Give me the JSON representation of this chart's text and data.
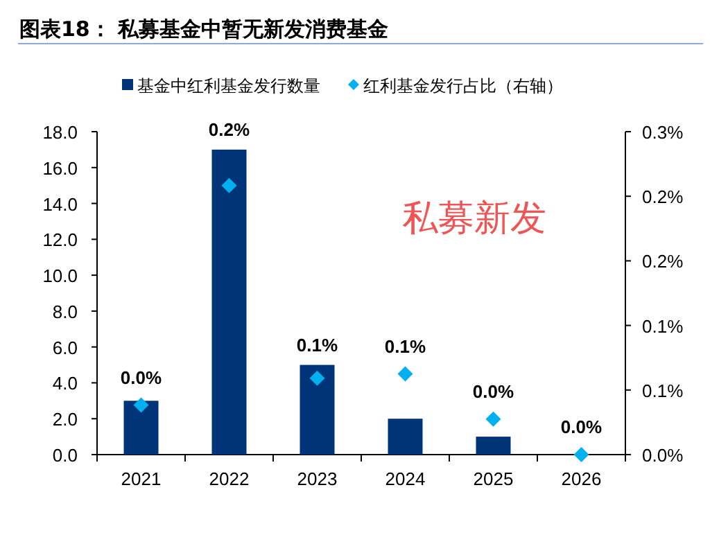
{
  "chart_data": {
    "type": "bar",
    "title": "图表18： 私募基金中暂无新发消费基金",
    "categories": [
      "2021",
      "2022",
      "2023",
      "2024",
      "2025",
      "2026"
    ],
    "series": [
      {
        "name": "基金中红利基金发行数量",
        "type": "bar",
        "color": "#003478",
        "values": [
          3.0,
          17.0,
          5.0,
          2.0,
          1.0,
          0
        ]
      },
      {
        "name": "红利基金发行占比（右轴）",
        "type": "scatter",
        "axis": "y2",
        "marker": "diamond",
        "color": "#00b0f0",
        "values": [
          0.046,
          0.25,
          0.071,
          0.075,
          0.033,
          0
        ],
        "value_labels": [
          "0.0%",
          "0.2%",
          "0.1%",
          "0.1%",
          "0.0%",
          "0.0%"
        ]
      }
    ],
    "ylim": [
      0,
      18
    ],
    "yticks": [
      {
        "value": 0,
        "label": "0.0"
      },
      {
        "value": 2,
        "label": "2.0"
      },
      {
        "value": 4,
        "label": "4.0"
      },
      {
        "value": 6,
        "label": "6.0"
      },
      {
        "value": 8,
        "label": "8.0"
      },
      {
        "value": 10,
        "label": "10.0"
      },
      {
        "value": 12,
        "label": "12.0"
      },
      {
        "value": 14,
        "label": "14.0"
      },
      {
        "value": 16,
        "label": "16.0"
      },
      {
        "value": 18,
        "label": "18.0"
      }
    ],
    "y2lim": [
      0,
      0.3
    ],
    "y2ticks": [
      {
        "value": 0,
        "label": "0.0%"
      },
      {
        "value": 0.06,
        "label": "0.1%"
      },
      {
        "value": 0.12,
        "label": "0.1%"
      },
      {
        "value": 0.18,
        "label": "0.2%"
      },
      {
        "value": 0.24,
        "label": "0.2%"
      },
      {
        "value": 0.3,
        "label": "0.3%"
      }
    ],
    "legend": "top",
    "grid": false,
    "annotations": [
      "私募新发"
    ]
  }
}
